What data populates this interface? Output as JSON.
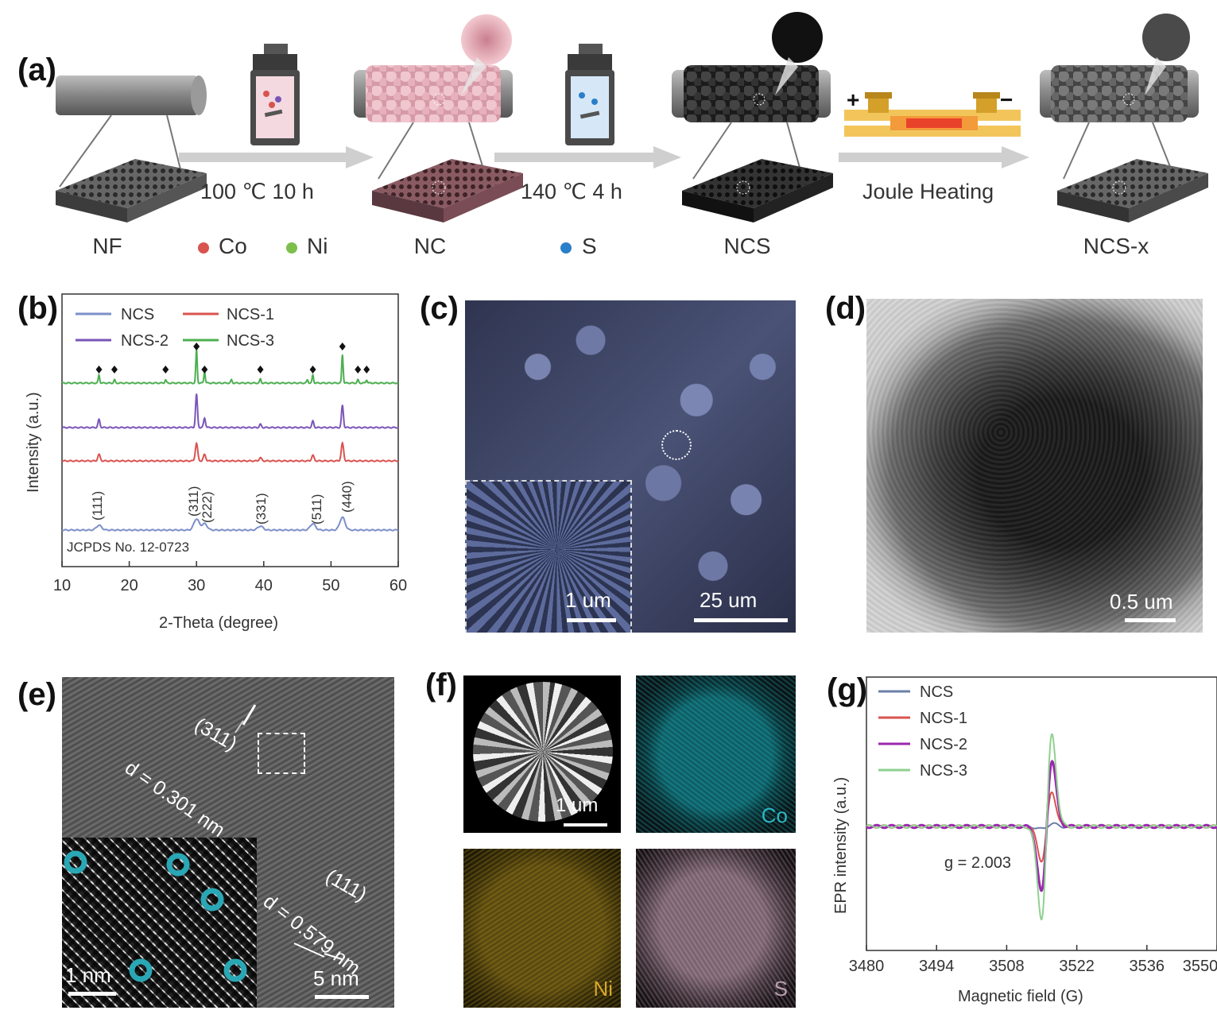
{
  "panel_a": {
    "label": "(a)",
    "stages": [
      "NF",
      "NC",
      "NCS",
      "NCS-x"
    ],
    "steps": [
      "100 ℃ 10 h",
      "140 ℃ 4 h",
      "Joule Heating"
    ],
    "legend": {
      "co": "Co",
      "ni": "Ni",
      "s": "S"
    },
    "colors": {
      "co": "#d9534f",
      "ni": "#7cbf4a",
      "s": "#2a7fc9",
      "nc_pink": "#d9a3ad",
      "ncs_dark": "#2e2e2e"
    },
    "joule_signs": {
      "plus": "+",
      "minus": "−"
    }
  },
  "panel_b": {
    "label": "(b)",
    "legend": [
      "NCS",
      "NCS-1",
      "NCS-2",
      "NCS-3"
    ],
    "ylabel": "Intensity (a.u.)",
    "xlabel": "2-Theta (degree)",
    "reference": "JCPDS No. 12-0723",
    "peak_labels": [
      "(111)",
      "(311)",
      "(222)",
      "(331)",
      "(511)",
      "(440)"
    ]
  },
  "chart_data": [
    {
      "type": "line",
      "panel": "b",
      "xlabel": "2-Theta (degree)",
      "ylabel": "Intensity (a.u.)",
      "xlim": [
        10,
        60
      ],
      "xticks": [
        10,
        20,
        30,
        40,
        50,
        60
      ],
      "peaks": [
        15.5,
        30,
        31.2,
        39.5,
        47.3,
        51.7
      ],
      "series": [
        {
          "name": "NCS",
          "color": "#7b8fc9"
        },
        {
          "name": "NCS-1",
          "color": "#d9534f"
        },
        {
          "name": "NCS-2",
          "color": "#7a55b8"
        },
        {
          "name": "NCS-3",
          "color": "#4caf50"
        }
      ]
    },
    {
      "type": "line",
      "panel": "g",
      "xlabel": "Magnetic field (G)",
      "ylabel": "EPR intensity (a.u.)",
      "xlim": [
        3480,
        3550
      ],
      "xticks": [
        3480,
        3494,
        3508,
        3522,
        3536,
        3550
      ],
      "annotation": "g = 2.003",
      "center_field": 3516,
      "series": [
        {
          "name": "NCS",
          "color": "#6b7fa8",
          "amplitude": 0.04
        },
        {
          "name": "NCS-1",
          "color": "#d9534f",
          "amplitude": 0.48
        },
        {
          "name": "NCS-2",
          "color": "#9c27b0",
          "amplitude": 0.93
        },
        {
          "name": "NCS-3",
          "color": "#8fd18f",
          "amplitude": 1.3
        }
      ]
    }
  ],
  "panel_c": {
    "label": "(c)",
    "scale_inset": "1 um",
    "scale_main": "25 um"
  },
  "panel_d": {
    "label": "(d)",
    "scale": "0.5 um"
  },
  "panel_e": {
    "label": "(e)",
    "plane1": "(311)",
    "d1": "d = 0.301 nm",
    "plane2": "(111)",
    "d2": "d = 0.579 nm",
    "scale_inset": "1 nm",
    "scale_main": "5 nm"
  },
  "panel_f": {
    "label": "(f)",
    "scale": "1 um",
    "maps": [
      "Co",
      "Ni",
      "S"
    ]
  },
  "panel_g": {
    "label": "(g)",
    "legend": [
      "NCS",
      "NCS-1",
      "NCS-2",
      "NCS-3"
    ],
    "annotation": "g = 2.003",
    "xlabel": "Magnetic field (G)",
    "ylabel": "EPR intensity (a.u.)"
  }
}
